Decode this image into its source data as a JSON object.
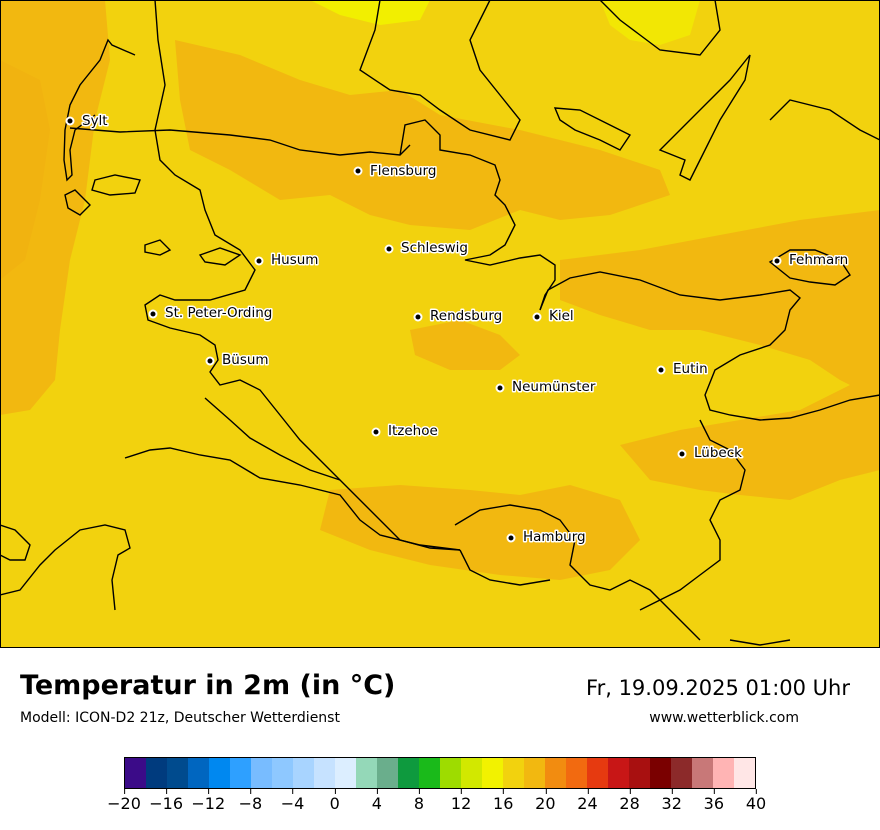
{
  "title": "Temperatur in 2m (in °C)",
  "model": "Modell: ICON-D2 21z, Deutscher Wetterdienst",
  "datetime": "Fr, 19.09.2025 01:00 Uhr",
  "website": "www.wetterblick.com",
  "map": {
    "base_color": "#f2d20e",
    "warm_color": "#f2be10",
    "warmer_color": "#f2a810",
    "cool_color": "#f2ef00",
    "cities": [
      {
        "name": "Sylt"
      },
      {
        "name": "Flensburg"
      },
      {
        "name": "Schleswig"
      },
      {
        "name": "Husum"
      },
      {
        "name": "St. Peter-Ording"
      },
      {
        "name": "Rendsburg"
      },
      {
        "name": "Kiel"
      },
      {
        "name": "Fehmarn"
      },
      {
        "name": "Büsum"
      },
      {
        "name": "Eutin"
      },
      {
        "name": "Neumünster"
      },
      {
        "name": "Itzehoe"
      },
      {
        "name": "Lübeck"
      },
      {
        "name": "Hamburg"
      }
    ]
  },
  "colorbar": {
    "colors": [
      "#3b0b88",
      "#003b7e",
      "#004b8e",
      "#0066c0",
      "#0088f0",
      "#2ea0ff",
      "#78bcff",
      "#8ec8ff",
      "#a8d4ff",
      "#c6e2ff",
      "#dceeff",
      "#94d8b8",
      "#6aae8c",
      "#0e9a3e",
      "#1aba1a",
      "#9edc00",
      "#d2e800",
      "#f2f200",
      "#f2d20e",
      "#f2b810",
      "#f28c10",
      "#f26a10",
      "#e63a10",
      "#c81616",
      "#a81010",
      "#7a0000",
      "#8c2a2a",
      "#c87878",
      "#ffb4b4",
      "#ffe6e6"
    ],
    "ticks": [
      "−20",
      "−16",
      "−12",
      "−8",
      "−4",
      "0",
      "4",
      "8",
      "12",
      "16",
      "20",
      "24",
      "28",
      "32",
      "36",
      "40"
    ]
  }
}
